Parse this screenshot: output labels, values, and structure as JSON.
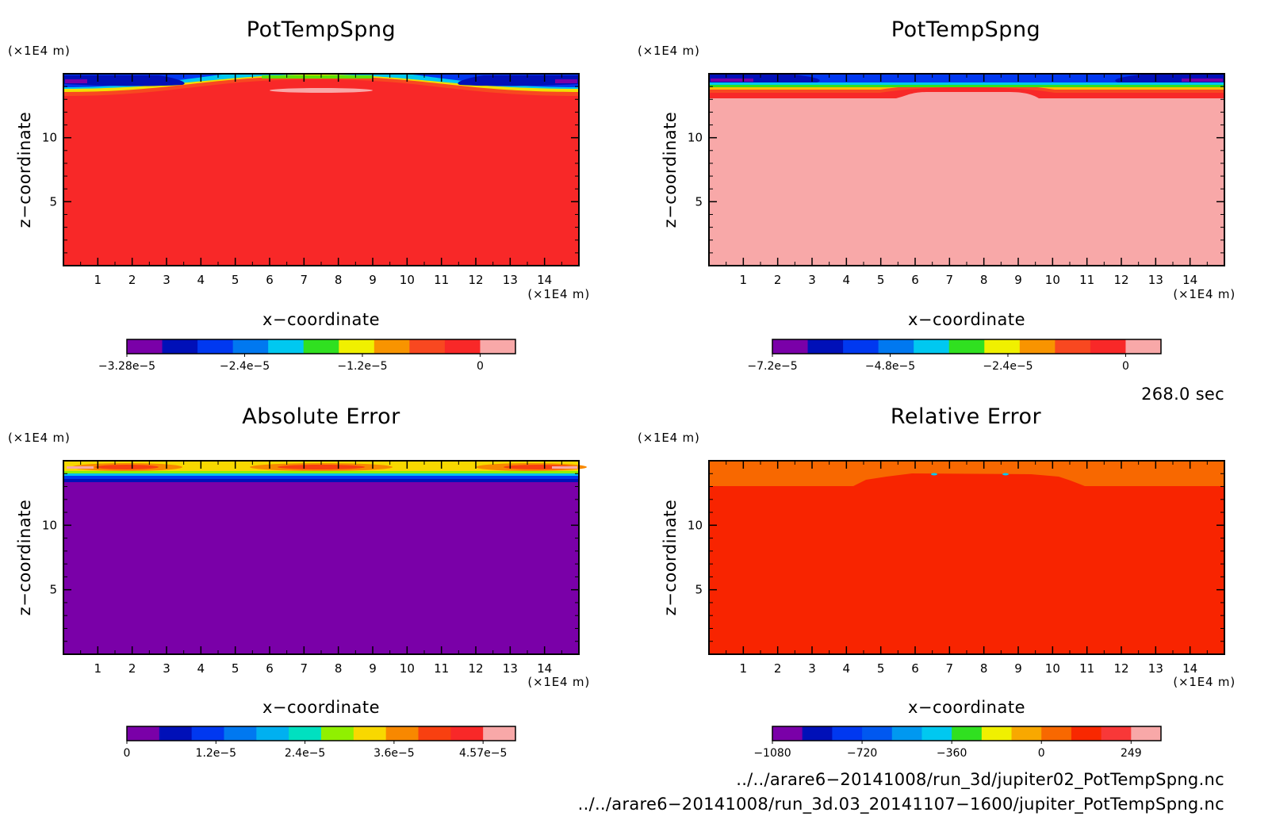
{
  "chart_data": [
    {
      "type": "heatmap",
      "title": "PotTempSpng",
      "xlabel": "x−coordinate",
      "ylabel": "z−coordinate",
      "x_unit": "(×1E4 m)",
      "z_unit": "(×1E4 m)",
      "xlim": [
        0,
        15
      ],
      "zlim": [
        0,
        15
      ],
      "x_ticks": [
        "1",
        "2",
        "3",
        "4",
        "5",
        "6",
        "7",
        "8",
        "9",
        "10",
        "11",
        "12",
        "13",
        "14"
      ],
      "z_ticks": [
        "5",
        "10"
      ],
      "colorbar": {
        "colors": [
          "#7a00a8",
          "#0010b8",
          "#0038f0",
          "#0078f0",
          "#00c8f0",
          "#30e020",
          "#f0f000",
          "#f89400",
          "#f84820",
          "#f82828",
          "#f8a8a8"
        ],
        "tick_labels": [
          "−3.28e−5",
          "−2.4e−5",
          "−1.2e−5",
          "0"
        ]
      },
      "background_color": "#f82828"
    },
    {
      "type": "heatmap",
      "title": "PotTempSpng",
      "xlabel": "x−coordinate",
      "ylabel": "z−coordinate",
      "x_unit": "(×1E4 m)",
      "z_unit": "(×1E4 m)",
      "xlim": [
        0,
        15
      ],
      "zlim": [
        0,
        15
      ],
      "x_ticks": [
        "1",
        "2",
        "3",
        "4",
        "5",
        "6",
        "7",
        "8",
        "9",
        "10",
        "11",
        "12",
        "13",
        "14"
      ],
      "z_ticks": [
        "5",
        "10"
      ],
      "colorbar": {
        "colors": [
          "#7a00a8",
          "#0010b8",
          "#0038f0",
          "#0078f0",
          "#00c8f0",
          "#30e020",
          "#f0f000",
          "#f89400",
          "#f84820",
          "#f82828",
          "#f8a8a8"
        ],
        "tick_labels": [
          "−7.2e−5",
          "−4.8e−5",
          "−2.4e−5",
          "0"
        ]
      },
      "background_color": "#f8a8a8"
    },
    {
      "type": "heatmap",
      "title": "Absolute Error",
      "xlabel": "x−coordinate",
      "ylabel": "z−coordinate",
      "x_unit": "(×1E4 m)",
      "z_unit": "(×1E4 m)",
      "xlim": [
        0,
        15
      ],
      "zlim": [
        0,
        15
      ],
      "x_ticks": [
        "1",
        "2",
        "3",
        "4",
        "5",
        "6",
        "7",
        "8",
        "9",
        "10",
        "11",
        "12",
        "13",
        "14"
      ],
      "z_ticks": [
        "5",
        "10"
      ],
      "colorbar": {
        "colors": [
          "#7a00a8",
          "#0010b8",
          "#0038f0",
          "#0078f0",
          "#00b0f0",
          "#00e0c0",
          "#90f000",
          "#f8d800",
          "#f88800",
          "#f84010",
          "#f82828",
          "#f8a8a8"
        ],
        "tick_labels": [
          "0",
          "1.2e−5",
          "2.4e−5",
          "3.6e−5",
          "4.57e−5"
        ]
      },
      "background_color": "#7a00a8"
    },
    {
      "type": "heatmap",
      "title": "Relative Error",
      "xlabel": "x−coordinate",
      "ylabel": "z−coordinate",
      "x_unit": "(×1E4 m)",
      "z_unit": "(×1E4 m)",
      "xlim": [
        0,
        15
      ],
      "zlim": [
        0,
        15
      ],
      "x_ticks": [
        "1",
        "2",
        "3",
        "4",
        "5",
        "6",
        "7",
        "8",
        "9",
        "10",
        "11",
        "12",
        "13",
        "14"
      ],
      "z_ticks": [
        "5",
        "10"
      ],
      "colorbar": {
        "colors": [
          "#7a00a8",
          "#0010b8",
          "#0038f0",
          "#0058f0",
          "#0098f0",
          "#00c8f0",
          "#30e020",
          "#f0f000",
          "#f8a800",
          "#f86800",
          "#f82800",
          "#f83838",
          "#f8a8a8"
        ],
        "tick_labels": [
          "−1080",
          "−720",
          "−360",
          "0",
          "249"
        ]
      },
      "background_color": "#f82400"
    }
  ],
  "time_label": "268.0 sec",
  "file_paths": [
    "../../arare6−20141008/run_3d/jupiter02_PotTempSpng.nc",
    "../../arare6−20141008/run_3d.03_20141107−1600/jupiter_PotTempSpng.nc"
  ]
}
